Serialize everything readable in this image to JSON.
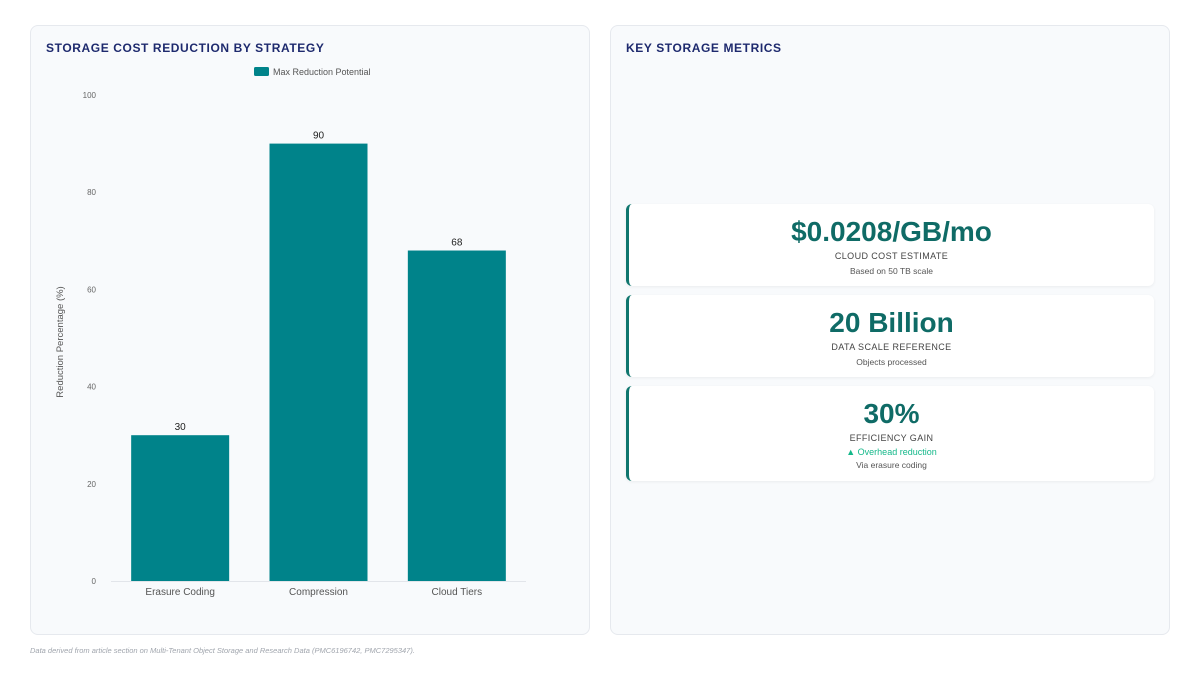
{
  "chart_panel": {
    "title": "STORAGE COST REDUCTION BY STRATEGY"
  },
  "chart_data": {
    "type": "bar",
    "title": "STORAGE COST REDUCTION BY STRATEGY",
    "categories": [
      "Erasure Coding",
      "Compression",
      "Cloud Tiers"
    ],
    "series": [
      {
        "name": "Max Reduction Potential",
        "values": [
          30,
          90,
          68
        ]
      }
    ],
    "xlabel": "",
    "ylabel": "Reduction Percentage (%)",
    "ylim": [
      0,
      100
    ],
    "yticks": [
      0,
      20,
      40,
      60,
      80,
      100
    ],
    "grid": false,
    "legend": "top-center",
    "bar_color": "#00838a",
    "data_labels": true
  },
  "metrics_panel": {
    "title": "KEY STORAGE METRICS",
    "cards": [
      {
        "value": "$0.0208/GB/mo",
        "label": "CLOUD COST ESTIMATE",
        "trend": "",
        "sub": "Based on 50 TB scale"
      },
      {
        "value": "20 Billion",
        "label": "DATA SCALE REFERENCE",
        "trend": "",
        "sub": "Objects processed"
      },
      {
        "value": "30%",
        "label": "EFFICIENCY GAIN",
        "trend": "▲ Overhead reduction",
        "sub": "Via erasure coding"
      }
    ],
    "accent_color": "#0f766e",
    "trend_color": "#14b88a"
  },
  "footnote": "Data derived from article section on Multi-Tenant Object Storage and Research Data (PMC6196742, PMC7295347)."
}
